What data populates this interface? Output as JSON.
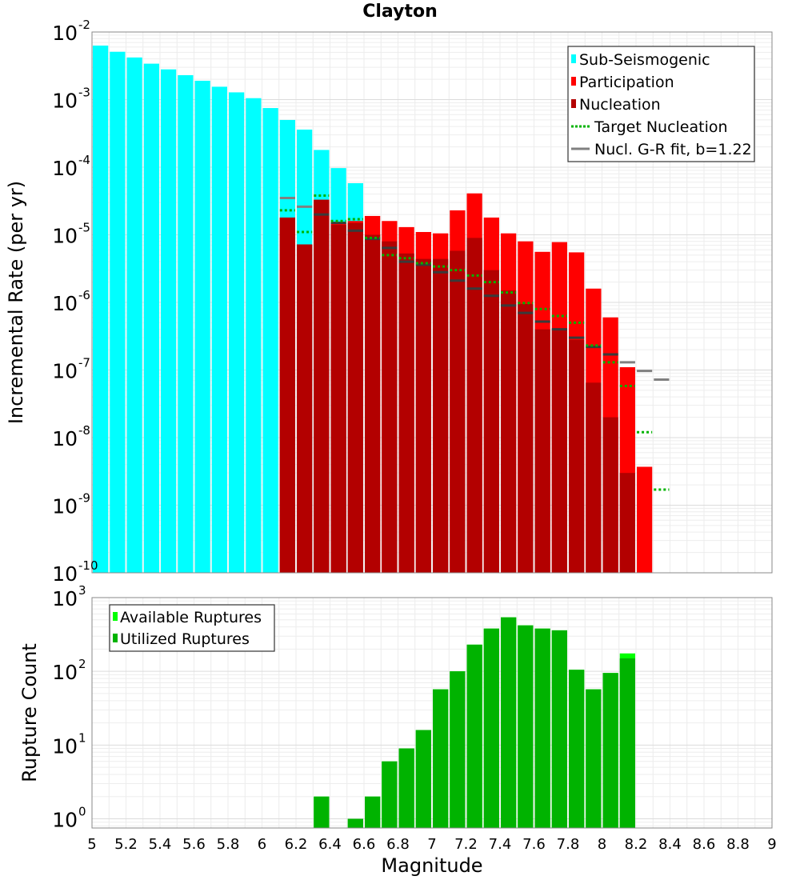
{
  "title": "Clayton",
  "chart_data": [
    {
      "type": "bar",
      "panel": "top",
      "title": "Clayton",
      "xlabel": "",
      "ylabel": "Incremental Rate (per yr)",
      "yscale": "log",
      "ylim": [
        1e-10,
        0.01
      ],
      "xlim": [
        5,
        9
      ],
      "grid": true,
      "legend_position": "top-right",
      "y_tick_labels": [
        {
          "base": "10",
          "exp": "-10"
        },
        {
          "base": "10",
          "exp": "-9"
        },
        {
          "base": "10",
          "exp": "-8"
        },
        {
          "base": "10",
          "exp": "-7"
        },
        {
          "base": "10",
          "exp": "-6"
        },
        {
          "base": "10",
          "exp": "-5"
        },
        {
          "base": "10",
          "exp": "-4"
        },
        {
          "base": "10",
          "exp": "-3"
        },
        {
          "base": "10",
          "exp": "-2"
        }
      ],
      "legend": [
        {
          "label": "Sub-Seismogenic",
          "kind": "bar"
        },
        {
          "label": "Participation",
          "kind": "bar"
        },
        {
          "label": "Nucleation",
          "kind": "bar"
        },
        {
          "label": "Target Nucleation",
          "kind": "dotted"
        },
        {
          "label": "Nucl. G-R fit, b=1.22",
          "kind": "line"
        }
      ],
      "colors": {
        "sub_seismogenic": "#00ffff",
        "participation": "#ff0000",
        "nucleation": "#b30000",
        "target_nucleation": "#00b300",
        "gr_fit": "#808080"
      },
      "series": [
        {
          "name": "Sub-Seismogenic",
          "x": [
            5.05,
            5.15,
            5.25,
            5.35,
            5.45,
            5.55,
            5.65,
            5.75,
            5.85,
            5.95,
            6.05,
            6.15,
            6.25,
            6.35,
            6.45,
            6.55
          ],
          "values": [
            0.0063,
            0.0051,
            0.0042,
            0.0034,
            0.0028,
            0.0023,
            0.0019,
            0.00155,
            0.00128,
            0.00105,
            0.00075,
            0.0005,
            0.00036,
            0.00018,
            9.7e-05,
            5.8e-05
          ]
        },
        {
          "name": "Participation",
          "x": [
            6.15,
            6.25,
            6.35,
            6.45,
            6.55,
            6.65,
            6.75,
            6.85,
            6.95,
            7.05,
            7.15,
            7.25,
            7.35,
            7.45,
            7.55,
            7.65,
            7.75,
            7.85,
            7.95,
            8.05,
            8.15,
            8.25
          ],
          "values": [
            1.8e-05,
            7.2e-06,
            3.3e-05,
            1.5e-05,
            1.6e-05,
            1.9e-05,
            1.6e-05,
            1.3e-05,
            1.1e-05,
            1.05e-05,
            2.3e-05,
            4.1e-05,
            1.8e-05,
            1.05e-05,
            8e-06,
            5.6e-06,
            7.8e-06,
            5.5e-06,
            1.6e-06,
            6e-07,
            1.1e-07,
            3.7e-09
          ]
        },
        {
          "name": "Nucleation",
          "x": [
            6.15,
            6.25,
            6.35,
            6.45,
            6.55,
            6.65,
            6.75,
            6.85,
            6.95,
            7.05,
            7.15,
            7.25,
            7.35,
            7.45,
            7.55,
            7.65,
            7.75,
            7.85,
            7.95,
            8.05,
            8.15
          ],
          "values": [
            1.8e-05,
            7.2e-06,
            3.3e-05,
            1.4e-05,
            1.5e-05,
            1e-05,
            8e-06,
            5.3e-06,
            4.4e-06,
            4.4e-06,
            5.8e-06,
            9e-06,
            3e-06,
            1.5e-06,
            9.5e-07,
            4e-07,
            4e-07,
            2.8e-07,
            6.5e-08,
            2e-08,
            3e-09
          ]
        },
        {
          "name": "Target Nucleation",
          "x": [
            6.15,
            6.25,
            6.35,
            6.45,
            6.55,
            6.65,
            6.75,
            6.85,
            6.95,
            7.05,
            7.15,
            7.25,
            7.35,
            7.45,
            7.55,
            7.65,
            7.75,
            7.85,
            7.95,
            8.05,
            8.15,
            8.25,
            8.35
          ],
          "values": [
            2.3e-05,
            1.1e-05,
            3.8e-05,
            1.6e-05,
            1.7e-05,
            9e-06,
            5e-06,
            4.5e-06,
            3.8e-06,
            3.4e-06,
            3e-06,
            2.5e-06,
            2e-06,
            1.4e-06,
            9.8e-07,
            8e-07,
            6.3e-07,
            5e-07,
            2.3e-07,
            1.3e-07,
            5.8e-08,
            1.2e-08,
            1.7e-09
          ]
        },
        {
          "name": "Nucl. G-R fit, b=1.22",
          "x": [
            6.15,
            6.25,
            6.35,
            6.45,
            6.55,
            6.65,
            6.75,
            6.85,
            6.95,
            7.05,
            7.15,
            7.25,
            7.35,
            7.45,
            7.55,
            7.65,
            7.75,
            7.85,
            7.95,
            8.05,
            8.15,
            8.25,
            8.35
          ],
          "values": [
            3.5e-05,
            2.6e-05,
            2e-05,
            1.5e-05,
            1.15e-05,
            8.7e-06,
            6.4e-06,
            4e-06,
            3.6e-06,
            2.8e-06,
            2.1e-06,
            1.6e-06,
            1.25e-06,
            9e-07,
            7e-07,
            5.2e-07,
            4e-07,
            3e-07,
            2.2e-07,
            1.7e-07,
            1.3e-07,
            9.7e-08,
            7.2e-08
          ]
        }
      ]
    },
    {
      "type": "bar",
      "panel": "bottom",
      "xlabel": "Magnitude",
      "ylabel": "Rupture Count",
      "yscale": "log",
      "ylim": [
        0.75,
        1000
      ],
      "xlim": [
        5,
        9
      ],
      "grid": true,
      "legend_position": "top-left",
      "x_tick_labels": [
        "5",
        "5.2",
        "5.4",
        "5.6",
        "5.8",
        "6",
        "6.2",
        "6.4",
        "6.6",
        "6.8",
        "7",
        "7.2",
        "7.4",
        "7.6",
        "7.8",
        "8",
        "8.2",
        "8.4",
        "8.6",
        "8.8",
        "9"
      ],
      "y_tick_labels": [
        {
          "base": "10",
          "exp": "0"
        },
        {
          "base": "10",
          "exp": "1"
        },
        {
          "base": "10",
          "exp": "2"
        },
        {
          "base": "10",
          "exp": "3"
        }
      ],
      "legend": [
        {
          "label": "Available Ruptures",
          "kind": "bar"
        },
        {
          "label": "Utilized Ruptures",
          "kind": "bar"
        }
      ],
      "colors": {
        "available": "#00ff00",
        "utilized": "#00b300"
      },
      "series": [
        {
          "name": "Available Ruptures",
          "x": [
            6.35,
            6.55,
            6.65,
            6.75,
            6.85,
            6.95,
            7.05,
            7.15,
            7.25,
            7.35,
            7.45,
            7.55,
            7.65,
            7.75,
            7.85,
            7.95,
            8.05,
            8.15
          ],
          "values": [
            2,
            1,
            2,
            6,
            9,
            16,
            57,
            100,
            230,
            380,
            540,
            420,
            380,
            360,
            105,
            57,
            95,
            175
          ]
        },
        {
          "name": "Utilized Ruptures",
          "x": [
            6.35,
            6.55,
            6.65,
            6.75,
            6.85,
            6.95,
            7.05,
            7.15,
            7.25,
            7.35,
            7.45,
            7.55,
            7.65,
            7.75,
            7.85,
            7.95,
            8.05,
            8.15
          ],
          "values": [
            2,
            1,
            2,
            6,
            9,
            16,
            57,
            100,
            230,
            380,
            540,
            420,
            380,
            360,
            105,
            57,
            95,
            150
          ]
        }
      ]
    }
  ]
}
